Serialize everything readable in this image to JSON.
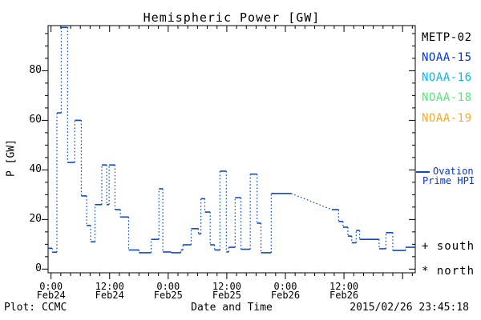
{
  "title": "Hemispheric Power [GW]",
  "y_axis": {
    "label": "P [GW]"
  },
  "footer": {
    "left": "Plot: CCMC",
    "center": "Date and Time",
    "right": "2015/02/26 23:45:18"
  },
  "legend": {
    "satellites": [
      {
        "label": "METP-02",
        "color": "#000000"
      },
      {
        "label": "NOAA-15",
        "color": "#0033ee"
      },
      {
        "label": "NOAA-16",
        "color": "#00bbee"
      },
      {
        "label": "NOAA-18",
        "color": "#58e87c"
      },
      {
        "label": "NOAA-19",
        "color": "#ffaa22"
      }
    ],
    "ovation_line1": "Ovation",
    "ovation_line2": "Prime HPI",
    "ovation_color": "#0033ee",
    "south_marker": "+ south",
    "north_marker": "* north"
  },
  "chart_data": {
    "type": "line",
    "title": "Hemispheric Power [GW]",
    "xlabel": "Date and Time",
    "ylabel": "P [GW]",
    "x_unit": "hours since 2015-02-24 00:00",
    "xlim": [
      -0.6,
      74.6
    ],
    "ylim": [
      -1.5,
      98.2
    ],
    "grid": false,
    "y_major_ticks": [
      0,
      20,
      40,
      60,
      80
    ],
    "y_minor_step": 5,
    "x_major_ticks_hours": [
      0,
      12,
      24,
      36,
      48,
      60,
      72
    ],
    "x_minor_step_hours": 2,
    "x_tick_labels": [
      {
        "hour": 0,
        "time": "0:00",
        "date": "Feb24"
      },
      {
        "hour": 12,
        "time": "12:00",
        "date": "Feb24"
      },
      {
        "hour": 24,
        "time": "0:00",
        "date": "Feb25"
      },
      {
        "hour": 36,
        "time": "12:00",
        "date": "Feb25"
      },
      {
        "hour": 48,
        "time": "0:00",
        "date": "Feb26"
      },
      {
        "hour": 60,
        "time": "12:00",
        "date": "Feb26"
      }
    ],
    "series": [
      {
        "name": "Ovation Prime HPI",
        "color": "#0b49d2",
        "style": "step-dotted",
        "end_hour": 74.6,
        "diagonal_segment": {
          "after_index": 37,
          "plateau_end_hour": 49.2
        },
        "points_hours_gw": [
          [
            -0.6,
            8.4
          ],
          [
            0.25,
            6.8
          ],
          [
            1.2,
            63
          ],
          [
            2.1,
            97.5
          ],
          [
            3.4,
            43
          ],
          [
            4.85,
            60
          ],
          [
            6.2,
            29.5
          ],
          [
            7.3,
            17.6
          ],
          [
            8.1,
            11
          ],
          [
            9.0,
            26
          ],
          [
            10.4,
            42
          ],
          [
            11.4,
            26
          ],
          [
            11.9,
            42
          ],
          [
            13.1,
            24
          ],
          [
            14.2,
            21
          ],
          [
            15.9,
            7.7
          ],
          [
            18.0,
            6.6
          ],
          [
            20.5,
            12
          ],
          [
            22.1,
            32.4
          ],
          [
            22.9,
            6.9
          ],
          [
            24.6,
            6.6
          ],
          [
            26.6,
            7.7
          ],
          [
            27.0,
            9.8
          ],
          [
            28.7,
            16.3
          ],
          [
            30.2,
            14.2
          ],
          [
            30.7,
            28.4
          ],
          [
            31.5,
            23
          ],
          [
            32.6,
            9.8
          ],
          [
            33.5,
            7.7
          ],
          [
            34.6,
            39.5
          ],
          [
            35.9,
            6.9
          ],
          [
            36.4,
            8.8
          ],
          [
            37.7,
            28.8
          ],
          [
            38.9,
            8.0
          ],
          [
            40.8,
            38.3
          ],
          [
            42.2,
            18.5
          ],
          [
            43.0,
            6.6
          ],
          [
            45.1,
            30.5
          ],
          [
            57.5,
            24
          ],
          [
            58.9,
            19.2
          ],
          [
            59.8,
            16.9
          ],
          [
            60.8,
            13.3
          ],
          [
            61.6,
            10.6
          ],
          [
            62.5,
            15.6
          ],
          [
            63.2,
            12
          ],
          [
            67.2,
            8.2
          ],
          [
            68.6,
            14.7
          ],
          [
            70.0,
            7.5
          ],
          [
            72.6,
            8.8
          ]
        ]
      }
    ]
  }
}
